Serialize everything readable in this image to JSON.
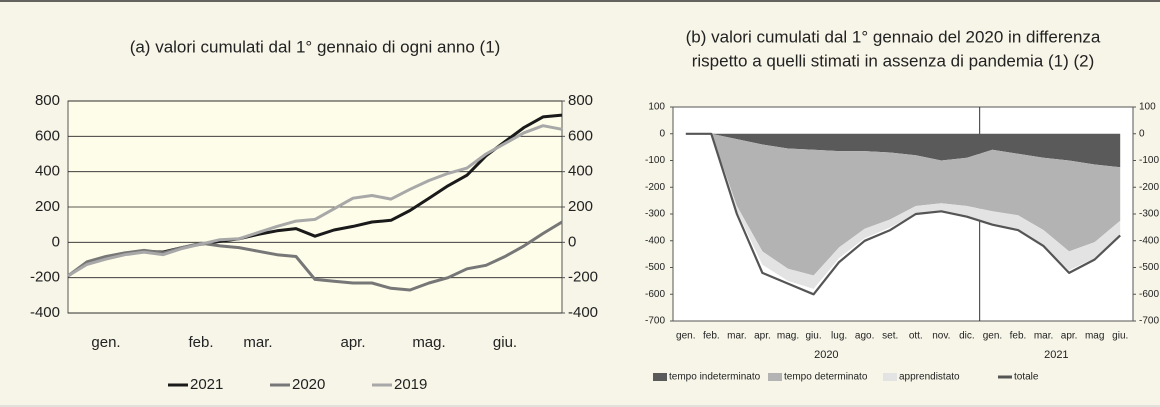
{
  "chart_data": [
    {
      "type": "line",
      "title": "(a) valori cumulati dal 1° gennaio di ogni anno (1)",
      "categories": [
        null,
        null,
        "gen.",
        null,
        null,
        null,
        null,
        "feb.",
        null,
        null,
        "mar.",
        null,
        null,
        null,
        null,
        "apr.",
        null,
        null,
        null,
        "mag.",
        null,
        null,
        null,
        "giu.",
        null,
        null,
        null
      ],
      "series": [
        {
          "name": "2021",
          "color": "#1a1a1a",
          "values": [
            -190,
            -120,
            -90,
            -65,
            -50,
            -55,
            -30,
            -10,
            5,
            20,
            45,
            65,
            78,
            35,
            70,
            90,
            115,
            125,
            180,
            250,
            320,
            380,
            490,
            570,
            650,
            710,
            720
          ]
        },
        {
          "name": "2020",
          "color": "#777777",
          "values": [
            -190,
            -110,
            -80,
            -60,
            -45,
            -60,
            -30,
            -5,
            -20,
            -30,
            -50,
            -70,
            -80,
            -210,
            -220,
            -230,
            -230,
            -260,
            -270,
            -230,
            -200,
            -150,
            -130,
            -80,
            -20,
            50,
            115
          ]
        },
        {
          "name": "2019",
          "color": "#a8a8a8",
          "values": [
            -190,
            -125,
            -95,
            -70,
            -55,
            -70,
            -35,
            -10,
            15,
            20,
            55,
            90,
            120,
            130,
            190,
            250,
            265,
            245,
            300,
            350,
            390,
            420,
            500,
            560,
            620,
            660,
            640
          ]
        }
      ],
      "ylim": [
        -400,
        800
      ],
      "yticks": [
        -400,
        -200,
        0,
        200,
        400,
        600,
        800
      ],
      "y2lim": [
        -400,
        800
      ],
      "y2ticks": [
        -400,
        -200,
        0,
        200,
        400,
        600,
        800
      ],
      "grid": true,
      "legend": "bottom"
    },
    {
      "type": "area",
      "title": [
        "(b) valori cumulati dal 1° gennaio del 2020 in differenza",
        "rispetto a quelli stimati in assenza di pandemia (1) (2)"
      ],
      "categories": [
        "gen.",
        "feb.",
        "mar.",
        "apr.",
        "mag.",
        "giu.",
        "lug.",
        "ago.",
        "set.",
        "ott.",
        "nov.",
        "dic.",
        "gen.",
        "feb.",
        "mar.",
        "apr.",
        "mag",
        "giu."
      ],
      "year_labels": [
        "2020",
        "2021"
      ],
      "series": [
        {
          "name": "tempo indeterminato",
          "color": "#5a5a5a",
          "values": [
            0,
            0,
            -20,
            -40,
            -55,
            -60,
            -65,
            -65,
            -70,
            -80,
            -100,
            -90,
            -60,
            -75,
            -90,
            -100,
            -115,
            -125
          ]
        },
        {
          "name": "tempo determinato",
          "color": "#b3b3b3",
          "values": [
            0,
            0,
            -250,
            -400,
            -450,
            -470,
            -360,
            -290,
            -250,
            -190,
            -160,
            -180,
            -230,
            -230,
            -270,
            -340,
            -290,
            -200
          ]
        },
        {
          "name": "apprendistato",
          "color": "#e3e3e3",
          "values": [
            0,
            0,
            -20,
            -50,
            -45,
            -50,
            -40,
            -35,
            -30,
            -30,
            -30,
            -40,
            -50,
            -50,
            -60,
            -70,
            -60,
            -50
          ]
        },
        {
          "name": "totale",
          "color": "#555555",
          "style": "line",
          "values": [
            0,
            0,
            -300,
            -520,
            -560,
            -600,
            -480,
            -400,
            -360,
            -300,
            -290,
            -310,
            -340,
            -360,
            -420,
            -520,
            -470,
            -380
          ]
        }
      ],
      "ylim": [
        -700,
        100
      ],
      "yticks": [
        -700,
        -600,
        -500,
        -400,
        -300,
        -200,
        -100,
        0,
        100
      ],
      "y2lim": [
        -700,
        100
      ],
      "y2ticks": [
        -700,
        -600,
        -500,
        -400,
        -300,
        -200,
        -100,
        0,
        100
      ],
      "grid": false,
      "legend": "bottom"
    }
  ]
}
